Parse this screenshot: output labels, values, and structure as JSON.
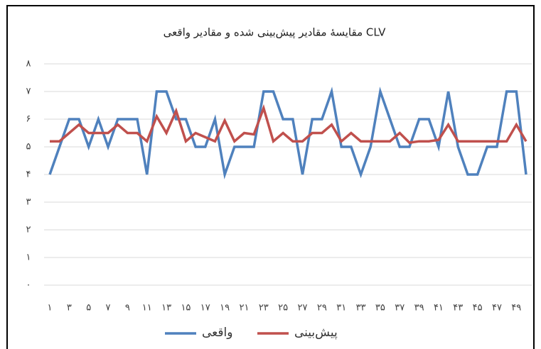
{
  "chart_data": {
    "type": "line",
    "title": "مقایسهٔ مقادیر پیش‌بینی شده و مقادیر واقعی CLV",
    "categories": [
      "۱",
      null,
      "۳",
      null,
      "۵",
      null,
      "۷",
      null,
      "۹",
      null,
      "۱۱",
      null,
      "۱۳",
      null,
      "۱۵",
      null,
      "۱۷",
      null,
      "۱۹",
      null,
      "۲۱",
      null,
      "۲۳",
      null,
      "۲۵",
      null,
      "۲۷",
      null,
      "۲۹",
      null,
      "۳۱",
      null,
      "۳۳",
      null,
      "۳۵",
      null,
      "۳۷",
      null,
      "۳۹",
      null,
      "۴۱",
      null,
      "۴۳",
      null,
      "۴۵",
      null,
      "۴۷",
      null,
      "۴۹",
      null
    ],
    "series": [
      {
        "name": "واقعی",
        "color": "#4f81bd",
        "values": [
          4,
          5,
          6,
          6,
          5,
          6,
          5,
          6,
          6,
          6,
          4,
          7,
          7,
          6,
          6,
          5,
          5,
          6,
          4,
          5,
          5,
          5,
          7,
          7,
          6,
          6,
          4,
          6,
          6,
          7,
          5,
          5,
          4,
          5,
          7,
          6,
          5,
          5,
          6,
          6,
          5,
          7,
          5,
          4,
          4,
          5,
          5,
          7,
          7,
          4
        ]
      },
      {
        "name": "پیش‌بینی",
        "color": "#c0504d",
        "values": [
          5.2,
          5.2,
          5.5,
          5.8,
          5.5,
          5.5,
          5.5,
          5.8,
          5.5,
          5.5,
          5.2,
          6.1,
          5.5,
          6.3,
          5.2,
          5.5,
          5.35,
          5.2,
          5.95,
          5.2,
          5.5,
          5.45,
          6.4,
          5.2,
          5.5,
          5.2,
          5.2,
          5.5,
          5.5,
          5.8,
          5.2,
          5.5,
          5.2,
          5.2,
          5.2,
          5.2,
          5.5,
          5.15,
          5.2,
          5.2,
          5.25,
          5.8,
          5.2,
          5.2,
          5.2,
          5.2,
          5.2,
          5.2,
          5.8,
          5.2
        ]
      }
    ],
    "ylim": [
      0,
      8
    ],
    "yticks": [
      {
        "value": 0,
        "label": "۰"
      },
      {
        "value": 1,
        "label": "۱"
      },
      {
        "value": 2,
        "label": "۲"
      },
      {
        "value": 3,
        "label": "۳"
      },
      {
        "value": 4,
        "label": "۴"
      },
      {
        "value": 5,
        "label": "۵"
      },
      {
        "value": 6,
        "label": "۶"
      },
      {
        "value": 7,
        "label": "۷"
      },
      {
        "value": 8,
        "label": "۸"
      }
    ],
    "grid": true
  }
}
